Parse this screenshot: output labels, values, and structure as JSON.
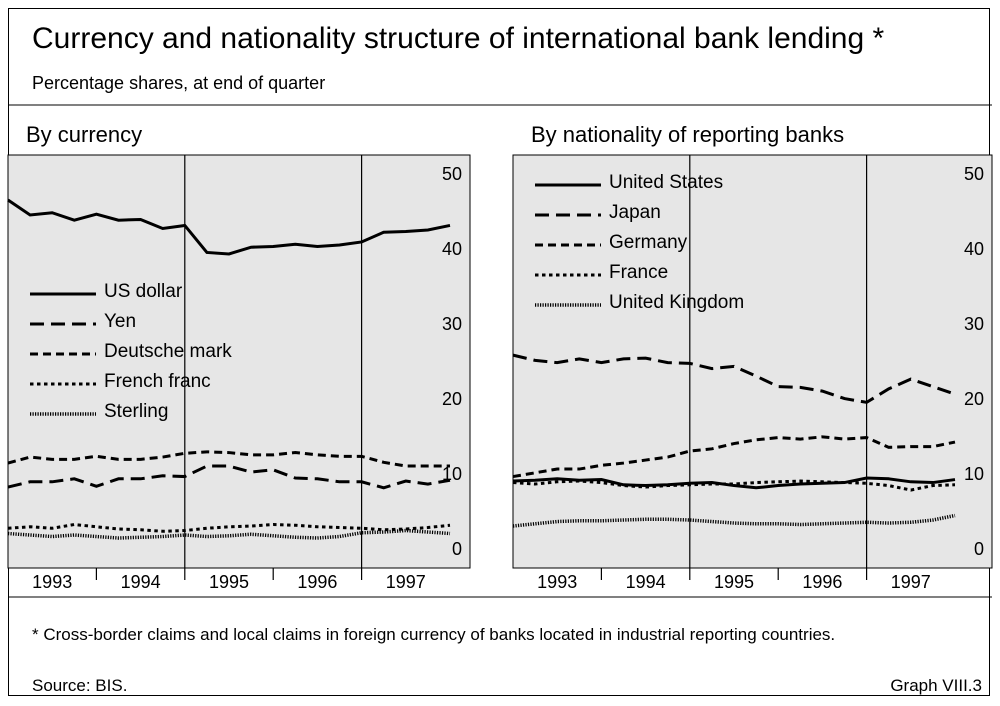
{
  "title": "Currency and nationality structure of international bank lending *",
  "subtitle": "Percentage shares, at end of quarter",
  "footnote": "* Cross-border claims and local claims in foreign currency of banks located in industrial reporting countries.",
  "source": "Source: BIS.",
  "graph_label": "Graph VIII.3",
  "chart_data": [
    {
      "type": "line",
      "title": "By currency",
      "x": [
        1993,
        1993.25,
        1993.5,
        1993.75,
        1994,
        1994.25,
        1994.5,
        1994.75,
        1995,
        1995.25,
        1995.5,
        1995.75,
        1996,
        1996.25,
        1996.5,
        1996.75,
        1997,
        1997.25,
        1997.5,
        1997.75,
        1998
      ],
      "xlim": [
        1993,
        1998
      ],
      "xticks": [
        {
          "value": 1993.5,
          "label": "1993"
        },
        {
          "value": 1994.5,
          "label": "1994"
        },
        {
          "value": 1995.5,
          "label": "1995"
        },
        {
          "value": 1996.5,
          "label": "1996"
        },
        {
          "value": 1997.5,
          "label": "1997"
        }
      ],
      "ylim": [
        -2.4,
        52.7
      ],
      "yticks": [
        0,
        10,
        20,
        30,
        40,
        50
      ],
      "vlines": [
        1995,
        1997
      ],
      "legend": "center-left",
      "series": [
        {
          "name": "US dollar",
          "color": "#000000",
          "dash": "solid",
          "values": [
            46.7,
            44.7,
            45.0,
            44.0,
            44.8,
            44.0,
            44.1,
            42.9,
            43.3,
            39.7,
            39.5,
            40.4,
            40.5,
            40.8,
            40.5,
            40.7,
            41.1,
            42.4,
            42.5,
            42.7,
            43.3
          ]
        },
        {
          "name": "Yen",
          "color": "#000000",
          "dash": "long",
          "values": [
            8.4,
            9.1,
            9.1,
            9.5,
            8.5,
            9.5,
            9.5,
            9.9,
            9.8,
            11.2,
            11.2,
            10.4,
            10.7,
            9.6,
            9.5,
            9.1,
            9.1,
            8.3,
            9.2,
            8.8,
            9.3
          ]
        },
        {
          "name": "Deutsche mark",
          "color": "#000000",
          "dash": "medium",
          "values": [
            11.6,
            12.4,
            12.1,
            12.1,
            12.5,
            12.1,
            12.1,
            12.4,
            12.9,
            13.1,
            13.0,
            12.7,
            12.7,
            13.0,
            12.7,
            12.5,
            12.5,
            11.7,
            11.2,
            11.2,
            11.2
          ]
        },
        {
          "name": "French franc",
          "color": "#000000",
          "dash": "short",
          "values": [
            2.9,
            3.1,
            2.9,
            3.4,
            3.1,
            2.8,
            2.7,
            2.5,
            2.6,
            2.9,
            3.1,
            3.2,
            3.4,
            3.3,
            3.1,
            3.0,
            2.9,
            2.7,
            2.8,
            3.0,
            3.3
          ]
        },
        {
          "name": "Sterling",
          "color": "#000000",
          "dash": "dotted",
          "values": [
            2.2,
            2.0,
            1.8,
            2.0,
            1.8,
            1.6,
            1.7,
            1.8,
            2.0,
            1.8,
            1.9,
            2.1,
            1.9,
            1.7,
            1.6,
            1.8,
            2.3,
            2.4,
            2.6,
            2.4,
            2.2
          ]
        }
      ]
    },
    {
      "type": "line",
      "title": "By nationality of reporting banks",
      "x": [
        1993,
        1993.25,
        1993.5,
        1993.75,
        1994,
        1994.25,
        1994.5,
        1994.75,
        1995,
        1995.25,
        1995.5,
        1995.75,
        1996,
        1996.25,
        1996.5,
        1996.75,
        1997,
        1997.25,
        1997.5,
        1997.75,
        1998
      ],
      "xlim": [
        1993,
        1998
      ],
      "xticks": [
        {
          "value": 1993.5,
          "label": "1993"
        },
        {
          "value": 1994.5,
          "label": "1994"
        },
        {
          "value": 1995.5,
          "label": "1995"
        },
        {
          "value": 1996.5,
          "label": "1996"
        },
        {
          "value": 1997.5,
          "label": "1997"
        }
      ],
      "ylim": [
        -2.4,
        52.7
      ],
      "yticks": [
        0,
        10,
        20,
        30,
        40,
        50
      ],
      "vlines": [
        1995,
        1997
      ],
      "legend": "upper-left",
      "series": [
        {
          "name": "United States",
          "color": "#000000",
          "dash": "solid",
          "values": [
            9.2,
            9.3,
            9.5,
            9.3,
            9.4,
            8.7,
            8.6,
            8.7,
            8.9,
            9.0,
            8.6,
            8.3,
            8.6,
            8.8,
            8.9,
            9.0,
            9.6,
            9.5,
            9.1,
            9.0,
            9.4
          ]
        },
        {
          "name": "Japan",
          "color": "#000000",
          "dash": "long",
          "values": [
            26.0,
            25.3,
            25.0,
            25.5,
            25.0,
            25.5,
            25.6,
            25.0,
            24.9,
            24.2,
            24.5,
            23.2,
            21.8,
            21.7,
            21.2,
            20.2,
            19.7,
            21.5,
            22.8,
            21.8,
            20.8
          ]
        },
        {
          "name": "Germany",
          "color": "#000000",
          "dash": "medium",
          "values": [
            9.8,
            10.3,
            10.8,
            10.8,
            11.3,
            11.6,
            12.0,
            12.4,
            13.2,
            13.5,
            14.2,
            14.7,
            15.0,
            14.8,
            15.1,
            14.8,
            15.0,
            13.7,
            13.8,
            13.8,
            14.4
          ]
        },
        {
          "name": "France",
          "color": "#000000",
          "dash": "short",
          "values": [
            9.0,
            8.8,
            9.1,
            9.2,
            9.0,
            8.6,
            8.4,
            8.6,
            8.7,
            8.8,
            8.8,
            9.0,
            9.1,
            9.2,
            9.1,
            9.0,
            8.9,
            8.6,
            8.0,
            8.6,
            8.7
          ]
        },
        {
          "name": "United Kingdom",
          "color": "#000000",
          "dash": "dotted",
          "values": [
            3.2,
            3.5,
            3.8,
            3.9,
            3.9,
            4.0,
            4.1,
            4.1,
            4.0,
            3.8,
            3.6,
            3.5,
            3.5,
            3.4,
            3.5,
            3.6,
            3.7,
            3.6,
            3.7,
            4.0,
            4.6
          ]
        }
      ]
    }
  ]
}
